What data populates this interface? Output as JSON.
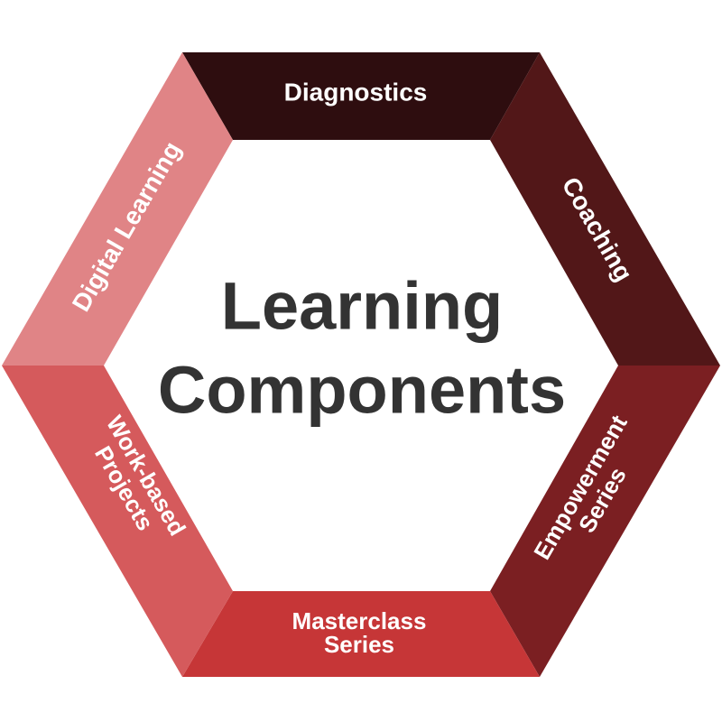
{
  "title": {
    "line1": "Learning",
    "line2": "Components"
  },
  "segments": {
    "top": {
      "label": "Diagnostics",
      "color": "#2e0d0f"
    },
    "upper_right": {
      "label": "Coaching",
      "color": "#521718"
    },
    "lower_right": {
      "line1": "Empowerment",
      "line2": "Series",
      "color": "#7b1f22"
    },
    "bottom": {
      "line1": "Masterclass",
      "line2": "Series",
      "color": "#c63637"
    },
    "lower_left": {
      "line1": "Work-based",
      "line2": "Projects",
      "color": "#d55a5c"
    },
    "upper_left": {
      "label": "Digital Learning",
      "color": "#e08486"
    }
  },
  "colors": {
    "title_text": "#333333",
    "label_text": "#ffffff",
    "background": "#ffffff"
  }
}
